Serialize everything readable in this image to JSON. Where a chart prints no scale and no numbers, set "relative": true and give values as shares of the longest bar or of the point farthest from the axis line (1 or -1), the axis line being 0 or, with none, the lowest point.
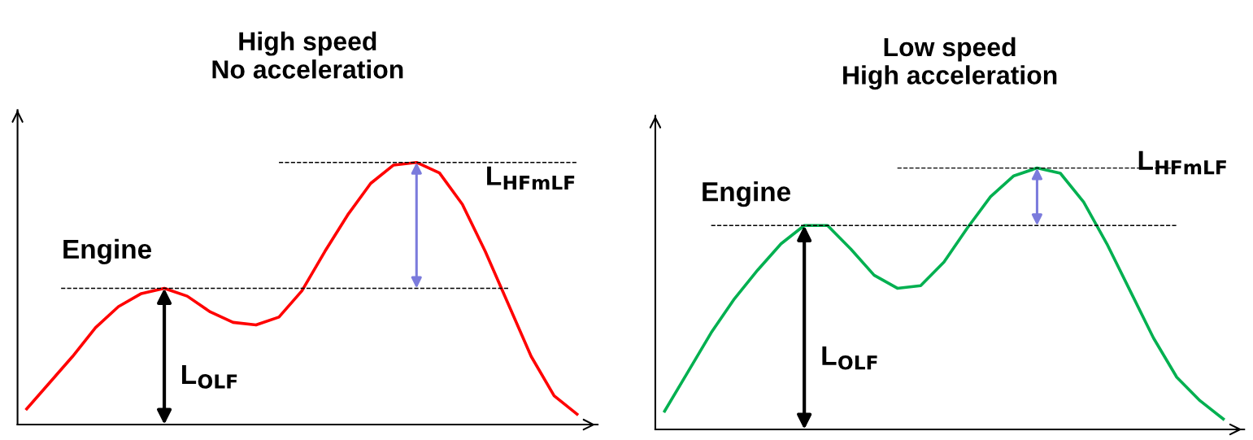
{
  "chart_data": [
    {
      "type": "line",
      "title": "High speed\nNo acceleration",
      "relative": true,
      "legend": false,
      "grid": false,
      "categories": [
        null,
        null,
        null,
        null,
        null,
        null,
        null,
        null,
        null,
        null,
        null,
        null,
        null,
        null,
        null,
        null,
        null,
        null,
        null,
        null,
        null,
        null,
        null,
        null,
        null
      ],
      "series": [
        {
          "color": "#ff0000",
          "values": [
            0.06,
            0.16,
            0.26,
            0.37,
            0.45,
            0.5,
            0.52,
            0.49,
            0.43,
            0.39,
            0.38,
            0.41,
            0.51,
            0.66,
            0.8,
            0.92,
            0.99,
            1.0,
            0.96,
            0.84,
            0.66,
            0.46,
            0.26,
            0.11,
            0.04
          ]
        }
      ],
      "ref_lines": [
        {
          "axis": "y",
          "value": 0.52,
          "line_style": "dashed",
          "color": "#000000"
        },
        {
          "axis": "y",
          "value": 1.0,
          "line_style": "dashed",
          "color": "#000000"
        }
      ],
      "annotations": [
        "Engine",
        "L$_{OLF}$",
        "L$_{HFmLF}$"
      ]
    },
    {
      "type": "line",
      "title": "Low speed\nHigh acceleration",
      "relative": true,
      "legend": false,
      "grid": false,
      "categories": [
        null,
        null,
        null,
        null,
        null,
        null,
        null,
        null,
        null,
        null,
        null,
        null,
        null,
        null,
        null,
        null,
        null,
        null,
        null,
        null,
        null,
        null,
        null,
        null,
        null
      ],
      "series": [
        {
          "color": "#00b050",
          "values": [
            0.07,
            0.22,
            0.37,
            0.5,
            0.61,
            0.71,
            0.78,
            0.78,
            0.69,
            0.59,
            0.54,
            0.55,
            0.64,
            0.77,
            0.89,
            0.97,
            1.0,
            0.98,
            0.87,
            0.71,
            0.53,
            0.35,
            0.2,
            0.11,
            0.04
          ]
        }
      ],
      "ref_lines": [
        {
          "axis": "y",
          "value": 0.78,
          "line_style": "dashed",
          "color": "#000000"
        },
        {
          "axis": "y",
          "value": 1.0,
          "line_style": "dashed",
          "color": "#000000"
        }
      ],
      "annotations": [
        "Engine",
        "L$_{OLF}$",
        "L$_{HFmLF}$"
      ]
    }
  ]
}
